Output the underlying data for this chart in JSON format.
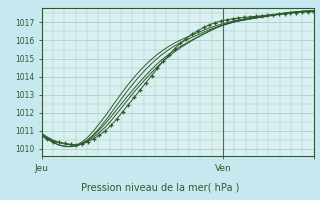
{
  "title": "",
  "xlabel": "Pression niveau de la mer( hPa )",
  "bg_color": "#c8e8f0",
  "plot_bg_color": "#daf0f0",
  "grid_color": "#a0c8c8",
  "line_color": "#2d5a2d",
  "ylim": [
    1009.6,
    1017.8
  ],
  "xlim": [
    0,
    48
  ],
  "yticks": [
    1010,
    1011,
    1012,
    1013,
    1014,
    1015,
    1016,
    1017
  ],
  "xtick_positions": [
    0,
    32,
    48
  ],
  "xtick_labels": [
    "Jeu",
    "Ven",
    ""
  ],
  "vline_x": 32,
  "series": [
    [
      1010.7,
      1010.55,
      1010.4,
      1010.35,
      1010.3,
      1010.25,
      1010.2,
      1010.25,
      1010.4,
      1010.55,
      1010.75,
      1011.0,
      1011.3,
      1011.65,
      1012.05,
      1012.45,
      1012.85,
      1013.25,
      1013.65,
      1014.05,
      1014.45,
      1014.85,
      1015.2,
      1015.55,
      1015.85,
      1016.1,
      1016.35,
      1016.55,
      1016.72,
      1016.87,
      1016.99,
      1017.08,
      1017.15,
      1017.2,
      1017.25,
      1017.28,
      1017.31,
      1017.34,
      1017.37,
      1017.4,
      1017.43,
      1017.46,
      1017.49,
      1017.52,
      1017.55,
      1017.57,
      1017.59,
      1017.6
    ],
    [
      1010.8,
      1010.6,
      1010.45,
      1010.35,
      1010.28,
      1010.22,
      1010.2,
      1010.28,
      1010.45,
      1010.65,
      1010.9,
      1011.2,
      1011.55,
      1011.95,
      1012.35,
      1012.75,
      1013.15,
      1013.52,
      1013.88,
      1014.22,
      1014.55,
      1014.85,
      1015.12,
      1015.38,
      1015.6,
      1015.8,
      1016.0,
      1016.18,
      1016.35,
      1016.52,
      1016.68,
      1016.82,
      1016.94,
      1017.04,
      1017.12,
      1017.18,
      1017.23,
      1017.28,
      1017.33,
      1017.38,
      1017.43,
      1017.48,
      1017.52,
      1017.56,
      1017.59,
      1017.62,
      1017.64,
      1017.65
    ],
    [
      1010.85,
      1010.65,
      1010.48,
      1010.35,
      1010.27,
      1010.22,
      1010.2,
      1010.3,
      1010.5,
      1010.75,
      1011.05,
      1011.4,
      1011.78,
      1012.18,
      1012.58,
      1012.97,
      1013.35,
      1013.72,
      1014.07,
      1014.4,
      1014.71,
      1014.99,
      1015.24,
      1015.47,
      1015.67,
      1015.85,
      1016.03,
      1016.2,
      1016.36,
      1016.52,
      1016.67,
      1016.8,
      1016.91,
      1017.0,
      1017.08,
      1017.14,
      1017.2,
      1017.25,
      1017.3,
      1017.35,
      1017.4,
      1017.45,
      1017.5,
      1017.54,
      1017.57,
      1017.6,
      1017.62,
      1017.63
    ],
    [
      1010.75,
      1010.52,
      1010.35,
      1010.22,
      1010.15,
      1010.12,
      1010.15,
      1010.28,
      1010.5,
      1010.8,
      1011.15,
      1011.55,
      1011.98,
      1012.42,
      1012.86,
      1013.28,
      1013.68,
      1014.05,
      1014.4,
      1014.72,
      1015.01,
      1015.27,
      1015.5,
      1015.7,
      1015.87,
      1016.03,
      1016.18,
      1016.32,
      1016.46,
      1016.59,
      1016.71,
      1016.82,
      1016.91,
      1017.0,
      1017.07,
      1017.13,
      1017.19,
      1017.24,
      1017.29,
      1017.34,
      1017.39,
      1017.44,
      1017.49,
      1017.53,
      1017.57,
      1017.6,
      1017.62,
      1017.63
    ],
    [
      1010.8,
      1010.55,
      1010.35,
      1010.2,
      1010.12,
      1010.12,
      1010.2,
      1010.38,
      1010.65,
      1011.0,
      1011.4,
      1011.82,
      1012.27,
      1012.72,
      1013.16,
      1013.58,
      1013.97,
      1014.33,
      1014.66,
      1014.96,
      1015.23,
      1015.47,
      1015.68,
      1015.86,
      1016.02,
      1016.17,
      1016.31,
      1016.44,
      1016.57,
      1016.69,
      1016.8,
      1016.9,
      1016.98,
      1017.06,
      1017.12,
      1017.18,
      1017.23,
      1017.28,
      1017.33,
      1017.38,
      1017.43,
      1017.48,
      1017.52,
      1017.56,
      1017.59,
      1017.62,
      1017.64,
      1017.65
    ]
  ]
}
